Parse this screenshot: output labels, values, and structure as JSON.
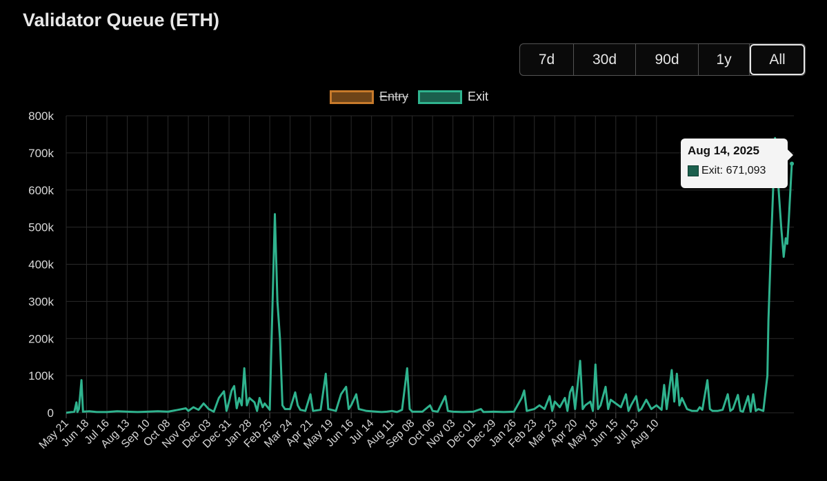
{
  "page": {
    "title": "Validator Queue (ETH)"
  },
  "range_buttons": [
    {
      "label": "7d",
      "active": false
    },
    {
      "label": "30d",
      "active": false
    },
    {
      "label": "90d",
      "active": false
    },
    {
      "label": "1y",
      "active": false
    },
    {
      "label": "All",
      "active": true
    }
  ],
  "colors": {
    "background": "#000000",
    "grid": "#2a2a2a",
    "axis_text": "#d8d8d8",
    "entry_border": "#c77a2b",
    "entry_fill": "#6e4418",
    "exit_line": "#2fb38e",
    "exit_fill": "#1b5f4d",
    "tooltip_bg": "#f4f4f4"
  },
  "tooltip": {
    "title": "Aug 14, 2025",
    "series": "Exit",
    "value": "671,093",
    "text": "Exit: 671,093"
  },
  "chart_data": {
    "type": "line",
    "title": "",
    "xlabel": "",
    "ylabel": "",
    "ylim": [
      0,
      800000
    ],
    "yticks": [
      0,
      100000,
      200000,
      300000,
      400000,
      500000,
      600000,
      700000,
      800000
    ],
    "ytick_labels": [
      "0",
      "100k",
      "200k",
      "300k",
      "400k",
      "500k",
      "600k",
      "700k",
      "800k"
    ],
    "xtick_labels": [
      "May 21",
      "Jun 18",
      "Jul 16",
      "Aug 13",
      "Sep 10",
      "Oct 08",
      "Nov 05",
      "Dec 03",
      "Dec 31",
      "Jan 28",
      "Feb 25",
      "Mar 24",
      "Apr 21",
      "May 19",
      "Jun 16",
      "Jul 14",
      "Aug 11",
      "Sep 08",
      "Oct 06",
      "Nov 03",
      "Dec 01",
      "Dec 29",
      "Jan 26",
      "Feb 23",
      "Mar 23",
      "Apr 20",
      "May 18",
      "Jun 15",
      "Jul 13",
      "Aug 10"
    ],
    "grid": true,
    "legend_position": "top-center",
    "legend": [
      {
        "name": "Entry",
        "hidden": true
      },
      {
        "name": "Exit",
        "hidden": false
      }
    ],
    "series": [
      {
        "name": "Exit",
        "x_unit": "weeks since May 21",
        "points": [
          [
            0,
            0
          ],
          [
            1.6,
            3000
          ],
          [
            2.0,
            28000
          ],
          [
            2.2,
            2000
          ],
          [
            2.5,
            10000
          ],
          [
            3.0,
            88000
          ],
          [
            3.3,
            3000
          ],
          [
            4.5,
            4000
          ],
          [
            6.0,
            2000
          ],
          [
            8.0,
            2000
          ],
          [
            10.0,
            4000
          ],
          [
            12.0,
            3000
          ],
          [
            14.0,
            2000
          ],
          [
            16.0,
            3000
          ],
          [
            18.0,
            4000
          ],
          [
            20.0,
            3000
          ],
          [
            22.0,
            8000
          ],
          [
            23.5,
            12000
          ],
          [
            24.0,
            5000
          ],
          [
            25.0,
            15000
          ],
          [
            26.0,
            8000
          ],
          [
            27.0,
            25000
          ],
          [
            28.0,
            10000
          ],
          [
            29.0,
            3000
          ],
          [
            30.0,
            40000
          ],
          [
            31.0,
            58000
          ],
          [
            31.5,
            5000
          ],
          [
            32.0,
            30000
          ],
          [
            32.5,
            60000
          ],
          [
            33.0,
            72000
          ],
          [
            33.5,
            12000
          ],
          [
            34.0,
            40000
          ],
          [
            34.5,
            20000
          ],
          [
            35.0,
            120000
          ],
          [
            35.5,
            20000
          ],
          [
            36.0,
            40000
          ],
          [
            37.0,
            28000
          ],
          [
            37.5,
            5000
          ],
          [
            38.0,
            40000
          ],
          [
            38.6,
            15000
          ],
          [
            39.0,
            25000
          ],
          [
            40.0,
            8000
          ],
          [
            41.0,
            535000
          ],
          [
            41.5,
            300000
          ],
          [
            42.0,
            200000
          ],
          [
            42.5,
            20000
          ],
          [
            43.0,
            10000
          ],
          [
            44.0,
            10000
          ],
          [
            45.0,
            55000
          ],
          [
            45.5,
            20000
          ],
          [
            46.0,
            8000
          ],
          [
            47.0,
            5000
          ],
          [
            48.0,
            50000
          ],
          [
            48.5,
            5000
          ],
          [
            50.0,
            8000
          ],
          [
            51.0,
            105000
          ],
          [
            51.5,
            10000
          ],
          [
            53.0,
            5000
          ],
          [
            54.0,
            50000
          ],
          [
            55.0,
            70000
          ],
          [
            55.5,
            10000
          ],
          [
            56.0,
            20000
          ],
          [
            57.0,
            50000
          ],
          [
            57.5,
            10000
          ],
          [
            59.0,
            5000
          ],
          [
            61.0,
            3000
          ],
          [
            62.0,
            2000
          ],
          [
            63.0,
            3000
          ],
          [
            64.0,
            5000
          ],
          [
            65.0,
            2000
          ],
          [
            66.0,
            8000
          ],
          [
            67.0,
            120000
          ],
          [
            67.5,
            10000
          ],
          [
            68.0,
            3000
          ],
          [
            70.0,
            3000
          ],
          [
            71.5,
            20000
          ],
          [
            72.0,
            5000
          ],
          [
            73.0,
            3000
          ],
          [
            74.5,
            45000
          ],
          [
            75.0,
            5000
          ],
          [
            76.0,
            3000
          ],
          [
            78.0,
            2000
          ],
          [
            80.0,
            3000
          ],
          [
            81.5,
            10000
          ],
          [
            82.0,
            2000
          ],
          [
            84.0,
            3000
          ],
          [
            86.0,
            2000
          ],
          [
            88.0,
            3000
          ],
          [
            89.5,
            40000
          ],
          [
            90.0,
            60000
          ],
          [
            90.5,
            5000
          ],
          [
            92.0,
            10000
          ],
          [
            93.0,
            20000
          ],
          [
            94.0,
            10000
          ],
          [
            95.0,
            45000
          ],
          [
            95.5,
            5000
          ],
          [
            96.0,
            30000
          ],
          [
            97.0,
            15000
          ],
          [
            98.0,
            40000
          ],
          [
            98.5,
            5000
          ],
          [
            99.0,
            55000
          ],
          [
            99.5,
            70000
          ],
          [
            100.0,
            10000
          ],
          [
            101.0,
            140000
          ],
          [
            101.5,
            10000
          ],
          [
            102.0,
            20000
          ],
          [
            103.0,
            30000
          ],
          [
            103.5,
            5000
          ],
          [
            104.0,
            130000
          ],
          [
            104.5,
            10000
          ],
          [
            105.0,
            20000
          ],
          [
            106.0,
            70000
          ],
          [
            106.5,
            10000
          ],
          [
            107.0,
            35000
          ],
          [
            108.0,
            25000
          ],
          [
            109.0,
            15000
          ],
          [
            110.0,
            50000
          ],
          [
            110.5,
            5000
          ],
          [
            111.0,
            20000
          ],
          [
            112.0,
            45000
          ],
          [
            112.5,
            5000
          ],
          [
            113.0,
            10000
          ],
          [
            114.0,
            35000
          ],
          [
            115.0,
            10000
          ],
          [
            116.0,
            20000
          ],
          [
            117.0,
            8000
          ],
          [
            117.5,
            75000
          ],
          [
            118.0,
            10000
          ],
          [
            119.0,
            115000
          ],
          [
            119.5,
            30000
          ],
          [
            120.0,
            105000
          ],
          [
            120.5,
            20000
          ],
          [
            121.0,
            40000
          ],
          [
            122.0,
            10000
          ],
          [
            123.0,
            5000
          ],
          [
            124.0,
            5000
          ],
          [
            124.5,
            15000
          ],
          [
            125.0,
            8000
          ],
          [
            126.0,
            88000
          ],
          [
            126.5,
            10000
          ],
          [
            127.0,
            5000
          ],
          [
            128.0,
            5000
          ],
          [
            129.0,
            8000
          ],
          [
            130.0,
            50000
          ],
          [
            130.5,
            5000
          ],
          [
            131.0,
            10000
          ],
          [
            132.0,
            48000
          ],
          [
            132.5,
            5000
          ],
          [
            133.0,
            3000
          ],
          [
            134.0,
            45000
          ],
          [
            134.5,
            3000
          ],
          [
            135.0,
            50000
          ],
          [
            135.5,
            5000
          ],
          [
            136.0,
            10000
          ],
          [
            137.0,
            5000
          ],
          [
            137.8,
            100000
          ],
          [
            138.0,
            250000
          ],
          [
            138.5,
            450000
          ],
          [
            139.0,
            630000
          ],
          [
            139.3,
            740000
          ],
          [
            139.6,
            680000
          ],
          [
            140.0,
            600000
          ],
          [
            140.5,
            500000
          ],
          [
            141.0,
            420000
          ],
          [
            141.4,
            470000
          ],
          [
            141.7,
            455000
          ],
          [
            142.0,
            520000
          ],
          [
            142.6,
            671093
          ]
        ]
      }
    ]
  }
}
